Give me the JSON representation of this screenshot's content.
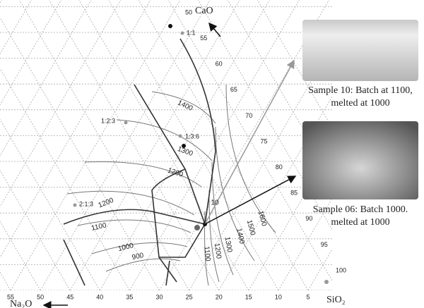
{
  "axes": {
    "top": "CaO",
    "left": "Na₂O",
    "right": "SiO₂"
  },
  "right_ticks": [
    "50",
    "55",
    "60",
    "65",
    "70",
    "75",
    "80",
    "85",
    "90",
    "95",
    "100"
  ],
  "bottom_ticks": [
    "55",
    "50",
    "45",
    "40",
    "35",
    "30",
    "25",
    "20",
    "15",
    "10",
    "5"
  ],
  "ratio_labels": [
    "1:1",
    "1:2:3",
    "1:3:6",
    "2:1:3"
  ],
  "isotherm_labels": [
    "1400",
    "1300",
    "1200",
    "1200",
    "1100",
    "1000",
    "900",
    "10",
    "1600",
    "1500",
    "1400",
    "1300",
    "1200",
    "1100"
  ],
  "captions": [
    {
      "line1": "Sample 10: Batch at 1100,",
      "line2": "melted at 1000"
    },
    {
      "line1": "Sample 06: Batch 1000.",
      "line2": "melted at 1000"
    }
  ]
}
